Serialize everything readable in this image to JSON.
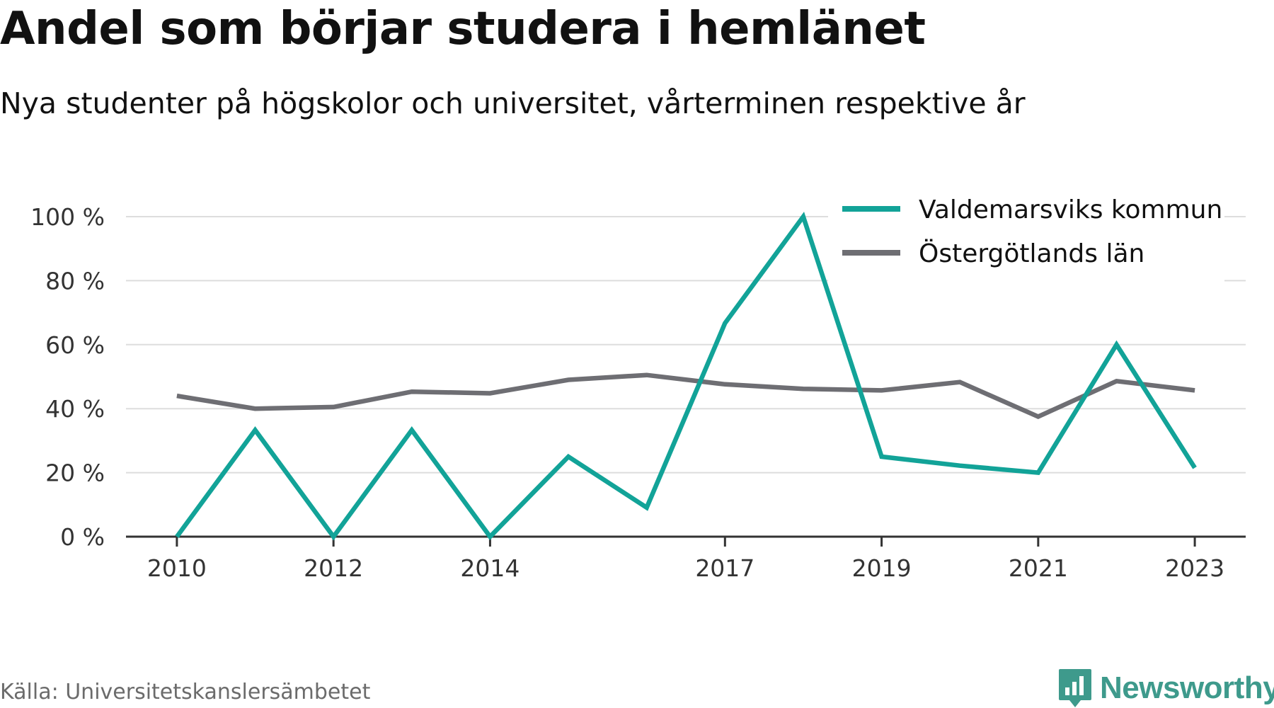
{
  "header": {
    "title": "Andel som börjar studera i hemlänet",
    "subtitle": "Nya studenter på högskolor och universitet, vårterminen respektive år"
  },
  "footer": {
    "source": "Källa: Universitetskanslersämbetet",
    "logo_text": "Newsworthy"
  },
  "colors": {
    "series1": "#12a398",
    "series2": "#6e6e73",
    "grid": "#dddddd",
    "axis": "#333333",
    "logo": "#3e9a8c"
  },
  "chart_data": {
    "type": "line",
    "title": "Andel som börjar studera i hemlänet",
    "subtitle": "Nya studenter på högskolor och universitet, vårterminen respektive år",
    "x": [
      2010,
      2011,
      2012,
      2013,
      2014,
      2015,
      2016,
      2017,
      2018,
      2019,
      2020,
      2021,
      2022,
      2023
    ],
    "x_tick_values": [
      2010,
      2012,
      2014,
      2017,
      2019,
      2021,
      2023
    ],
    "x_tick_labels": [
      "2010",
      "2012",
      "2014",
      "2017",
      "2019",
      "2021",
      "2023"
    ],
    "xlim": [
      2009.35,
      2023.65
    ],
    "ylim": [
      0,
      100
    ],
    "y_tick_values": [
      0,
      20,
      40,
      60,
      80,
      100
    ],
    "y_tick_labels": [
      "0 %",
      "20 %",
      "40 %",
      "60 %",
      "80 %",
      "100 %"
    ],
    "grid": "horizontal",
    "legend_position": "top-right",
    "series": [
      {
        "name": "Valdemarsviks kommun",
        "values": [
          0,
          33.3,
          0,
          33.3,
          0,
          25,
          9.1,
          66.7,
          100,
          25,
          22.2,
          20,
          60,
          21.5
        ]
      },
      {
        "name": "Östergötlands län",
        "values": [
          44,
          40,
          40.5,
          45.3,
          44.8,
          49,
          50.5,
          47.6,
          46.2,
          45.7,
          48.3,
          37.5,
          48.6,
          45.7
        ]
      }
    ]
  }
}
